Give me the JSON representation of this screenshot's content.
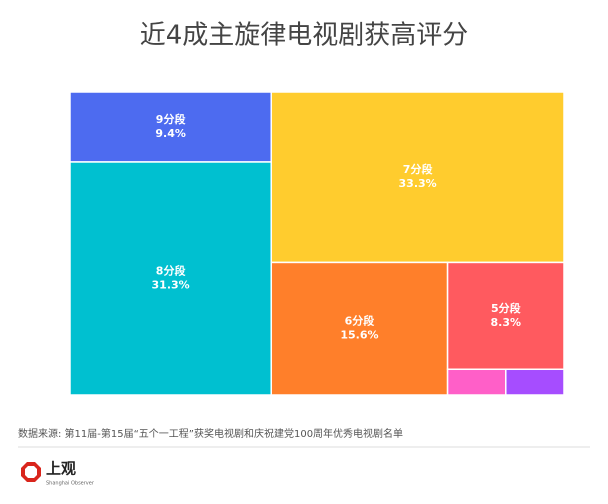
{
  "chart_data": {
    "type": "treemap",
    "title": "近4成主旋律电视剧获高评分",
    "categories": [
      "9分段",
      "8分段",
      "7分段",
      "6分段",
      "5分段",
      null,
      null
    ],
    "values": [
      9.4,
      31.3,
      33.3,
      15.6,
      8.3,
      1.0,
      1.0
    ],
    "value_labels": [
      "9.4%",
      "31.3%",
      "33.3%",
      "15.6%",
      "8.3%",
      null,
      null
    ],
    "colors": [
      "#4d6bf0",
      "#00c0d0",
      "#ffcc2e",
      "#ff7f2a",
      "#ff5a5f",
      "#ff5fc8",
      "#a64dff"
    ]
  },
  "source": "数据来源: 第11届-第15届“五个一工程”获奖电视剧和庆祝建党100周年优秀电视剧名单",
  "logo": {
    "name": "上观",
    "subtitle": "Shanghai Observer"
  }
}
